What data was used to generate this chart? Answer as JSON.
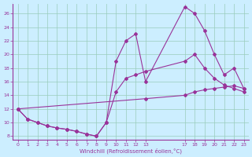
{
  "xlabel": "Windchill (Refroidissement éolien,°C)",
  "bg_color": "#cceeff",
  "line_color": "#993399",
  "grid_color": "#99ccbb",
  "xlim": [
    -0.5,
    23.5
  ],
  "ylim": [
    7.5,
    27.5
  ],
  "xticks": [
    0,
    1,
    2,
    3,
    4,
    5,
    6,
    7,
    8,
    9,
    10,
    11,
    12,
    13,
    17,
    18,
    19,
    20,
    21,
    22,
    23
  ],
  "yticks": [
    8,
    10,
    12,
    14,
    16,
    18,
    20,
    22,
    24,
    26
  ],
  "line1_upper": {
    "x": [
      0,
      1,
      2,
      3,
      4,
      5,
      6,
      7,
      8,
      9,
      10,
      11,
      12,
      13,
      17,
      18,
      19,
      20,
      21,
      22,
      23
    ],
    "y": [
      12,
      10.5,
      10,
      9.5,
      9.2,
      9.0,
      8.7,
      8.3,
      8.0,
      10.0,
      19.0,
      22.0,
      23.0,
      16.0,
      27.0,
      26.0,
      23.5,
      20.0,
      17.0,
      18.0,
      15.0
    ]
  },
  "line2_middle": {
    "x": [
      0,
      1,
      2,
      3,
      4,
      5,
      6,
      7,
      8,
      9,
      10,
      11,
      12,
      13,
      17,
      18,
      19,
      20,
      21,
      22,
      23
    ],
    "y": [
      12,
      10.5,
      10,
      9.5,
      9.2,
      9.0,
      8.7,
      8.3,
      8.0,
      10.0,
      14.5,
      16.5,
      17.0,
      17.5,
      19.0,
      20.0,
      18.0,
      16.5,
      15.5,
      15.0,
      14.5
    ]
  },
  "line3_diagonal": {
    "x": [
      0,
      13,
      17,
      18,
      19,
      20,
      21,
      22,
      23
    ],
    "y": [
      12,
      13.5,
      14.0,
      14.5,
      14.8,
      15.0,
      15.2,
      15.4,
      15.0
    ]
  }
}
